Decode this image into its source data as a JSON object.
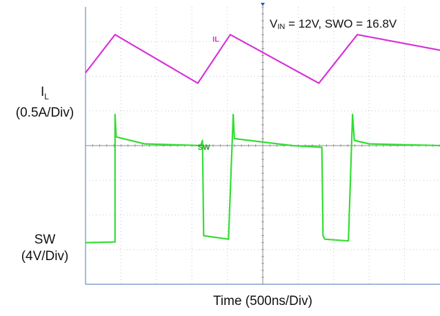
{
  "chart_data": {
    "type": "line",
    "annotation": {
      "v_label": "V",
      "v_sub": "IN",
      "v_rest": " = 12V, SWO = 16.8V"
    },
    "xlabel": "Time  (500ns/Div)",
    "channels": [
      {
        "name": "IL",
        "axis_main": "I",
        "axis_sub": "L",
        "axis_scale": "(0.5A/Div)",
        "color": "#d633d6",
        "x": [
          0,
          0.5,
          1.9,
          2.45,
          3.95,
          4.6,
          6.0
        ],
        "y": [
          2.1,
          3.2,
          1.8,
          3.2,
          1.8,
          3.2,
          2.75
        ]
      },
      {
        "name": "SW",
        "axis_main": "SW",
        "axis_scale": "(4V/Div)",
        "color": "#33dd33",
        "x": [
          0,
          0.5,
          0.5,
          0.52,
          1.0,
          1.95,
          1.98,
          2.0,
          2.42,
          2.5,
          2.52,
          3.5,
          4.0,
          4.02,
          4.05,
          4.45,
          4.52,
          4.55,
          4.8,
          6.0
        ],
        "y": [
          -2.8,
          -2.78,
          0.9,
          0.25,
          0.05,
          0.0,
          0.15,
          -2.6,
          -2.7,
          0.9,
          0.2,
          0.0,
          -0.05,
          -2.6,
          -2.7,
          -2.75,
          0.9,
          0.15,
          0.05,
          0.0
        ]
      }
    ],
    "xlim": [
      0,
      6
    ],
    "ylim": [
      -4,
      4
    ],
    "grid_x_divisions": 10,
    "grid_y_divisions": 8
  }
}
